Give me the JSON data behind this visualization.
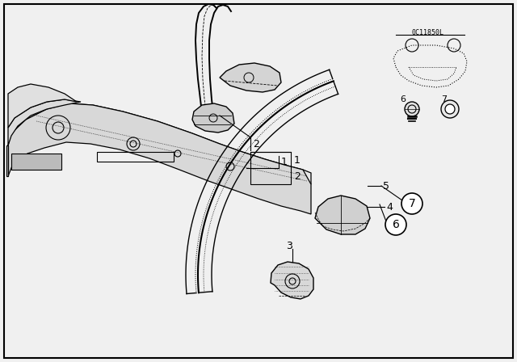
{
  "background_color": "#f0f0f0",
  "border_color": "#000000",
  "line_color": "#000000",
  "figure_width": 6.4,
  "figure_height": 4.48,
  "dpi": 100,
  "diagram_code": "0C11850L"
}
